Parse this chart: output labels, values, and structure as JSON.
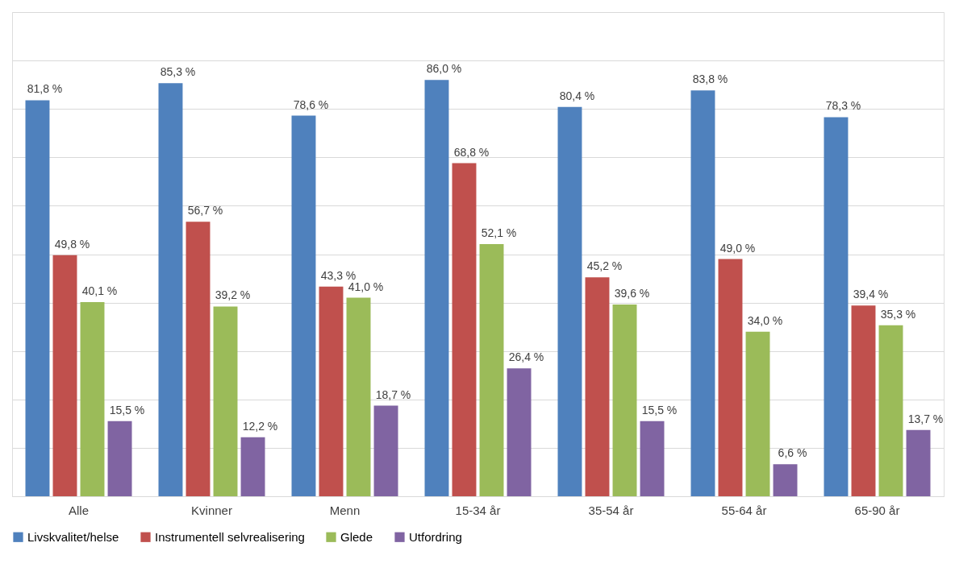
{
  "chart_data": {
    "type": "bar",
    "categories": [
      "Alle",
      "Kvinner",
      "Menn",
      "15-34 år",
      "35-54 år",
      "55-64 år",
      "65-90 år"
    ],
    "series": [
      {
        "name": "Livskvalitet/helse",
        "color": "#4f81bd",
        "values": [
          81.8,
          85.3,
          78.6,
          86.0,
          80.4,
          83.8,
          78.3
        ],
        "value_labels": [
          "81,8 %",
          "85,3 %",
          "78,6 %",
          "86,0 %",
          "80,4 %",
          "83,8 %",
          "78,3 %"
        ]
      },
      {
        "name": "Instrumentell selvrealisering",
        "color": "#c0504d",
        "values": [
          49.8,
          56.7,
          43.3,
          68.8,
          45.2,
          49.0,
          39.4
        ],
        "value_labels": [
          "49,8 %",
          "56,7 %",
          "43,3 %",
          "68,8 %",
          "45,2 %",
          "49,0 %",
          "39,4 %"
        ]
      },
      {
        "name": "Glede",
        "color": "#9bbb59",
        "values": [
          40.1,
          39.2,
          41.0,
          52.1,
          39.6,
          34.0,
          35.3
        ],
        "value_labels": [
          "40,1 %",
          "39,2 %",
          "41,0 %",
          "52,1 %",
          "39,6 %",
          "34,0 %",
          "35,3 %"
        ]
      },
      {
        "name": "Utfordring",
        "color": "#8064a2",
        "values": [
          15.5,
          12.2,
          18.7,
          26.4,
          15.5,
          6.6,
          13.7
        ],
        "value_labels": [
          "15,5 %",
          "12,2 %",
          "18,7 %",
          "26,4 %",
          "15,5 %",
          "6,6 %",
          "13,7 %"
        ]
      }
    ],
    "ylim": [
      0,
      100
    ],
    "yticks": [
      {
        "value": 0,
        "label": null
      },
      {
        "value": 10,
        "label": null
      },
      {
        "value": 20,
        "label": null
      },
      {
        "value": 30,
        "label": null
      },
      {
        "value": 40,
        "label": null
      },
      {
        "value": 50,
        "label": null
      },
      {
        "value": 60,
        "label": null
      },
      {
        "value": 70,
        "label": null
      },
      {
        "value": 80,
        "label": null
      },
      {
        "value": 90,
        "label": null
      },
      {
        "value": 100,
        "label": null
      }
    ],
    "grid": "y",
    "legend": "bottom",
    "tick_labels": "x"
  }
}
